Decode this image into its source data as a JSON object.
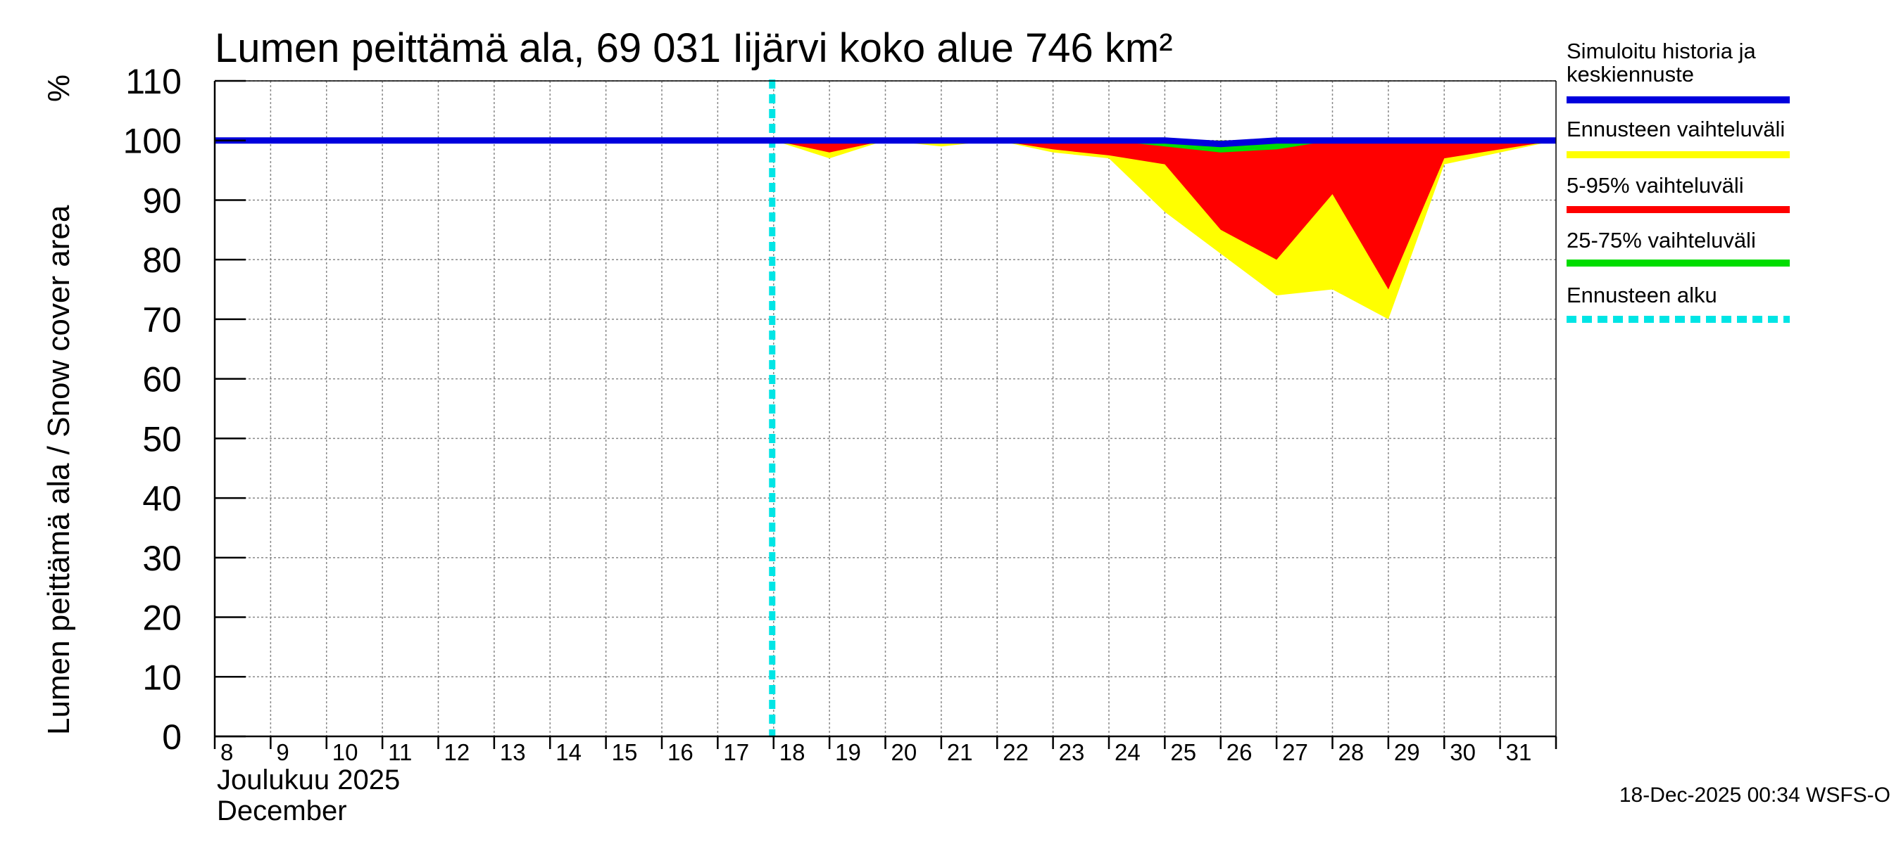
{
  "chart_data": {
    "type": "area",
    "title": "Lumen peittämä ala, 69 031 Iijärvi koko alue 746 km²",
    "ylabel": "Lumen peittämä ala / Snow cover area",
    "yunit": "%",
    "ylim": [
      0,
      110
    ],
    "yticks": [
      0,
      10,
      20,
      30,
      40,
      50,
      60,
      70,
      80,
      90,
      100,
      110
    ],
    "xlim": [
      8,
      32
    ],
    "xticks": [
      8,
      9,
      10,
      11,
      12,
      13,
      14,
      15,
      16,
      17,
      18,
      19,
      20,
      21,
      22,
      23,
      24,
      25,
      26,
      27,
      28,
      29,
      30,
      31
    ],
    "month_label_fi": "Joulukuu  2025",
    "month_label_en": "December",
    "grid": true,
    "forecast_start": 18,
    "series": [
      {
        "name": "Ennusteen vaihteluväli",
        "color": "#ffff00",
        "x": [
          18,
          19,
          20,
          21,
          22,
          23,
          24,
          25,
          26,
          27,
          28,
          29,
          30,
          31,
          32
        ],
        "upper": [
          100,
          100,
          100,
          100,
          100,
          100,
          100,
          100,
          100,
          100,
          100,
          100,
          100,
          100,
          100
        ],
        "lower": [
          100,
          97,
          100,
          99,
          100,
          98,
          97,
          88,
          81,
          74,
          75,
          70,
          96,
          98,
          100
        ]
      },
      {
        "name": "5-95% vaihteluväli",
        "color": "#ff0000",
        "x": [
          18,
          19,
          20,
          21,
          22,
          23,
          24,
          25,
          26,
          27,
          28,
          29,
          30,
          31,
          32
        ],
        "upper": [
          100,
          100,
          100,
          100,
          100,
          100,
          100,
          100,
          100,
          100,
          100,
          100,
          100,
          100,
          100
        ],
        "lower": [
          100,
          98,
          100,
          100,
          100,
          98.5,
          97.5,
          96,
          85,
          80,
          91,
          75,
          97,
          98.5,
          100
        ]
      },
      {
        "name": "25-75% vaihteluväli",
        "color": "#00dd00",
        "x": [
          18,
          19,
          20,
          21,
          22,
          23,
          24,
          25,
          26,
          27,
          28,
          29,
          30,
          31,
          32
        ],
        "upper": [
          100,
          100,
          100,
          100,
          100,
          100,
          100,
          100,
          100,
          100,
          100,
          100,
          100,
          100,
          100
        ],
        "lower": [
          100,
          100,
          100,
          100,
          100,
          100,
          100,
          99,
          98,
          98.5,
          100,
          100,
          100,
          100,
          100
        ]
      },
      {
        "name": "Simuloitu historia ja keskiennuste",
        "color": "#0000dd",
        "x": [
          8,
          18,
          19,
          20,
          21,
          22,
          23,
          24,
          25,
          26,
          27,
          28,
          29,
          30,
          31,
          32
        ],
        "values": [
          100,
          100,
          100,
          100,
          100,
          100,
          100,
          100,
          100,
          99.4,
          100,
          100,
          100,
          100,
          100,
          100
        ]
      }
    ],
    "legend": [
      {
        "label": "Simuloitu historia ja keskiennuste",
        "color": "#0000dd",
        "style": "solid"
      },
      {
        "label": "Ennusteen vaihteluväli",
        "color": "#ffff00",
        "style": "solid"
      },
      {
        "label": "5-95% vaihteluväli",
        "color": "#ff0000",
        "style": "solid"
      },
      {
        "label": "25-75% vaihteluväli",
        "color": "#00dd00",
        "style": "solid"
      },
      {
        "label": "Ennusteen alku",
        "color": "#00e5e5",
        "style": "dashed"
      }
    ],
    "legend_position": "right",
    "footer": "18-Dec-2025 00:34 WSFS-O"
  }
}
